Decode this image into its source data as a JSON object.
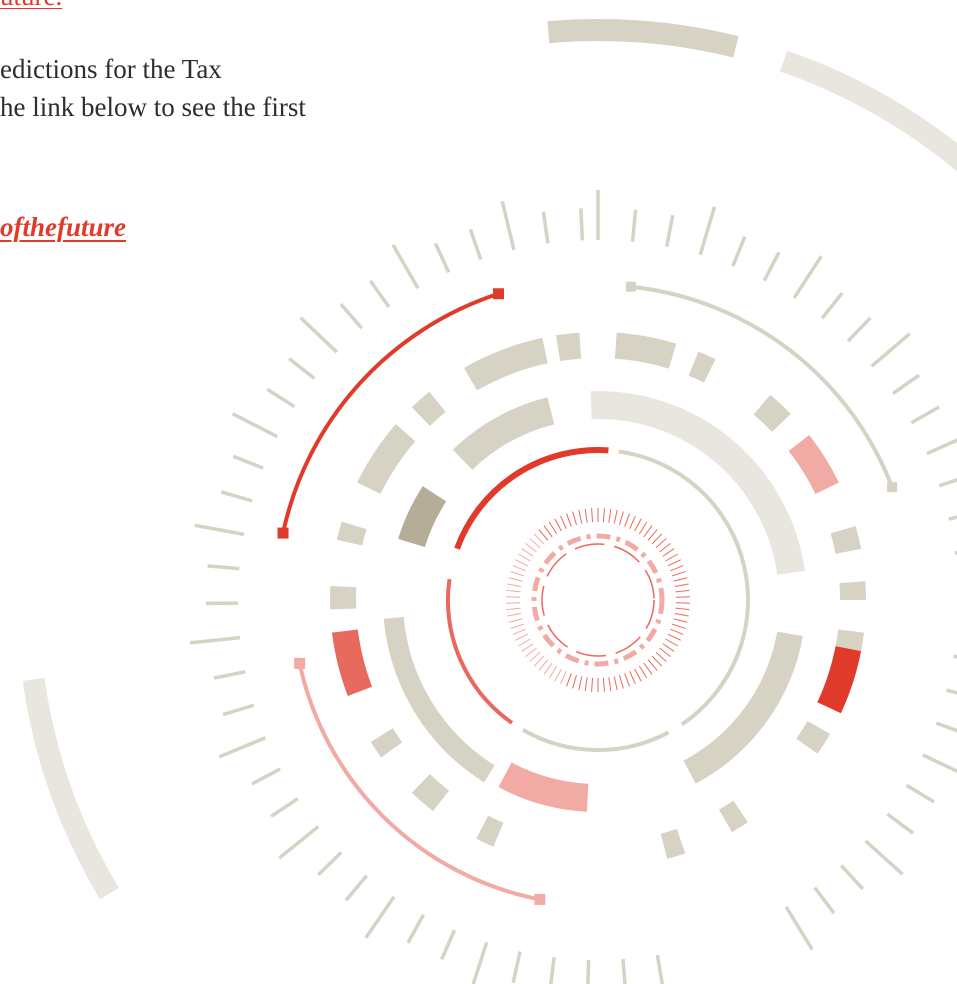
{
  "text": {
    "top_link": "uture.",
    "lines": [
      "edictions for the Tax",
      "he link below to see the first"
    ],
    "link": "ofthefuture"
  }
}
